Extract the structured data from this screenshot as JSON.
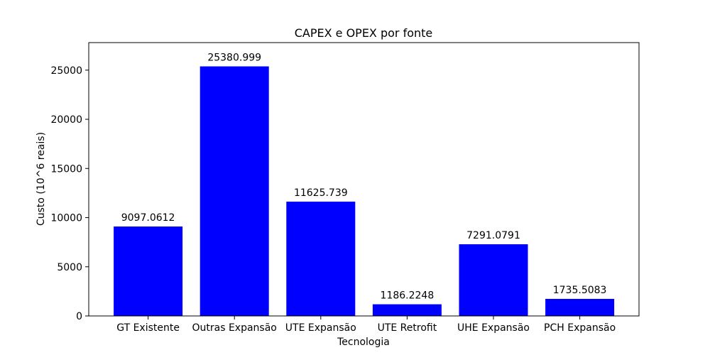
{
  "chart_data": {
    "type": "bar",
    "title": "CAPEX e OPEX por fonte",
    "xlabel": "Tecnologia",
    "ylabel": "Custo (10^6 reais)",
    "categories": [
      "GT Existente",
      "Outras Expansão",
      "UTE Expansão",
      "UTE Retrofit",
      "UHE Expansão",
      "PCH Expansão"
    ],
    "values": [
      9097.0612,
      25380.999,
      11625.739,
      1186.2248,
      7291.0791,
      1735.5083
    ],
    "value_labels": [
      "9097.0612",
      "25380.999",
      "11625.739",
      "1186.2248",
      "7291.0791",
      "1735.5083"
    ],
    "ylim": [
      0,
      27800
    ],
    "yticks": [
      0,
      5000,
      10000,
      15000,
      20000,
      25000
    ],
    "bar_color": "#0000ff",
    "grid": false
  }
}
